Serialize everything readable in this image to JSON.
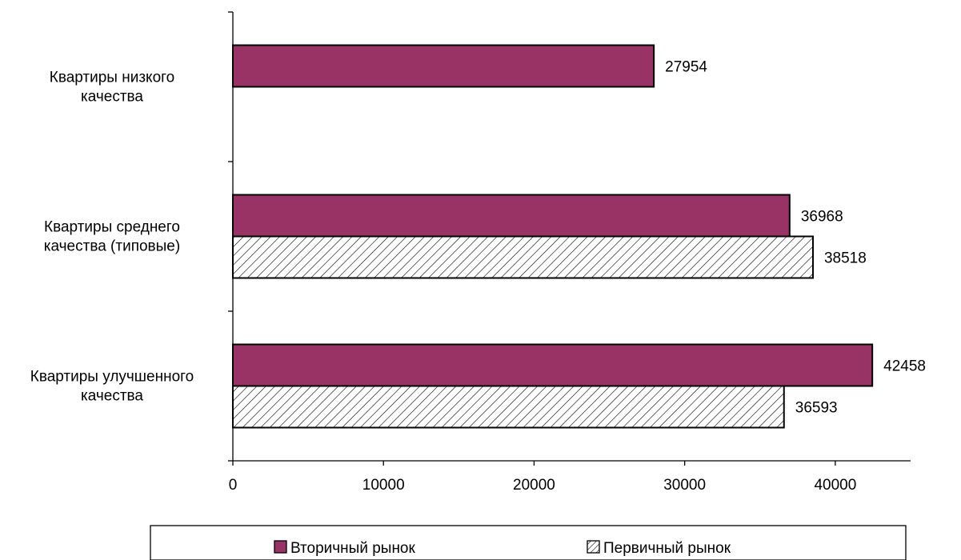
{
  "chart_data": {
    "type": "bar",
    "orientation": "horizontal",
    "categories": [
      [
        "Квартиры низкого",
        "качества"
      ],
      [
        "Квартиры среднего",
        "качества (типовые)"
      ],
      [
        "Квартиры улучшенного",
        "качества"
      ]
    ],
    "series": [
      {
        "name": "Вторичный рынок",
        "values": [
          27954,
          36968,
          42458
        ],
        "color": "#993366",
        "pattern": "solid"
      },
      {
        "name": "Первичный рынок",
        "values": [
          null,
          38518,
          36593
        ],
        "color": "#ffffff",
        "pattern": "diagonal-hatch"
      }
    ],
    "xlim": [
      0,
      45000
    ],
    "xticks": [
      0,
      10000,
      20000,
      30000,
      40000
    ],
    "xtick_labels": [
      "0",
      "10000",
      "20000",
      "30000",
      "40000"
    ],
    "data_labels": true,
    "grid": false,
    "legend_position": "bottom",
    "title": "",
    "xlabel": "",
    "ylabel": ""
  }
}
